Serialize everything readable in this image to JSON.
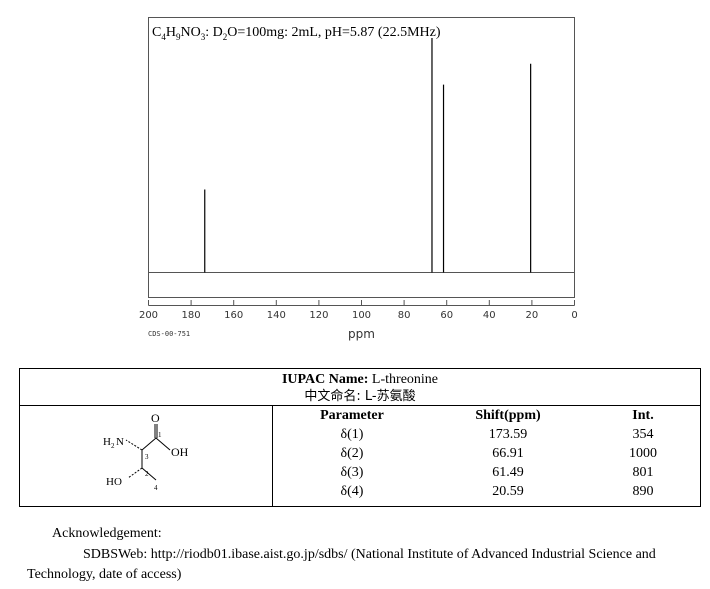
{
  "spectrum": {
    "title_formula_parts": [
      {
        "t": "C",
        "sub": false
      },
      {
        "t": "4",
        "sub": true
      },
      {
        "t": "H",
        "sub": false
      },
      {
        "t": "9",
        "sub": true
      },
      {
        "t": "NO",
        "sub": false
      },
      {
        "t": "3",
        "sub": true
      },
      {
        "t": ": D",
        "sub": false
      },
      {
        "t": "2",
        "sub": true
      },
      {
        "t": "O=100mg: 2mL, pH=5.87 (22.5MHz)",
        "sub": false
      }
    ],
    "code": "CDS-00-751",
    "unit": "ppm"
  },
  "chart_data": {
    "type": "bar",
    "title": "C4H9NO3: D2O=100mg: 2mL, pH=5.87 (22.5MHz)",
    "xlabel": "ppm",
    "ylabel": "",
    "xlim": [
      200,
      0
    ],
    "x_ticks": [
      "200",
      "180",
      "160",
      "140",
      "120",
      "100",
      "80",
      "60",
      "40",
      "20",
      "0"
    ],
    "grid": false,
    "peaks": [
      {
        "shift": 173.59,
        "intensity": 354
      },
      {
        "shift": 66.91,
        "intensity": 1000
      },
      {
        "shift": 61.49,
        "intensity": 801
      },
      {
        "shift": 20.59,
        "intensity": 890
      }
    ]
  },
  "table": {
    "iupac_label": "IUPAC Name:",
    "iupac_value": "L-threonine",
    "chinese_label": "中文命名:",
    "chinese_value": "L-苏氨酸",
    "headers": [
      "Parameter",
      "Shift(ppm)",
      "Int."
    ],
    "rows": [
      {
        "param": "δ(1)",
        "shift": "173.59",
        "int": "354"
      },
      {
        "param": "δ(2)",
        "shift": "66.91",
        "int": "1000"
      },
      {
        "param": "δ(3)",
        "shift": "61.49",
        "int": "801"
      },
      {
        "param": "δ(4)",
        "shift": "20.59",
        "int": "890"
      }
    ],
    "structure": {
      "o": "O",
      "oh": "OH",
      "h2n_h": "H",
      "h2n_2": "2",
      "h2n_n": "N",
      "ho": "HO",
      "n1": "1",
      "n2": "2",
      "n3": "3",
      "n4": "4"
    }
  },
  "footer": {
    "ack": "Acknowledgement:",
    "source": "SDBSWeb: http://riodb01.ibase.aist.go.jp/sdbs/ (National Institute of Advanced Industrial Science and Technology, date of access)"
  }
}
